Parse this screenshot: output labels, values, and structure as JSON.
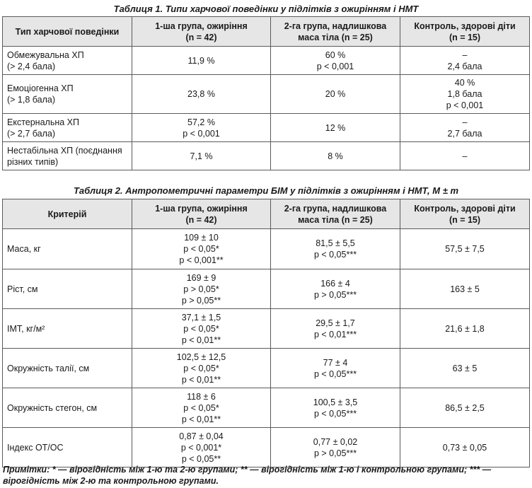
{
  "table1": {
    "caption": "Таблиця 1. Типи харчової поведінки у підлітків з ожирінням і НМТ",
    "headers": [
      [
        "Тип харчової поведінки"
      ],
      [
        "1-ша група, ожиріння",
        "(n = 42)"
      ],
      [
        "2-га група, надлишкова",
        "маса тіла (n = 25)"
      ],
      [
        "Контроль, здорові діти",
        "(n = 15)"
      ]
    ],
    "rows": [
      [
        [
          "Обмежувальна ХП",
          "(> 2,4 бала)"
        ],
        [
          "11,9 %"
        ],
        [
          "60 %",
          "p < 0,001"
        ],
        [
          "–",
          "2,4 бала"
        ]
      ],
      [
        [
          "Емоціогенна ХП",
          "(> 1,8 бала)"
        ],
        [
          "23,8 %"
        ],
        [
          "20 %"
        ],
        [
          "40 %",
          "1,8 бала",
          "p < 0,001"
        ]
      ],
      [
        [
          "Екстернальна ХП",
          "(> 2,7 бала)"
        ],
        [
          "57,2 %",
          "p < 0,001"
        ],
        [
          "12 %"
        ],
        [
          "–",
          "2,7 бала"
        ]
      ],
      [
        [
          "Нестабільна ХП (поєднання",
          "різних типів)"
        ],
        [
          "7,1 %"
        ],
        [
          "8 %"
        ],
        [
          "–"
        ]
      ]
    ]
  },
  "table2": {
    "caption": "Таблиця 2. Антропометричні параметри БІМ у підлітків з ожирінням і НМТ, M ± m",
    "headers": [
      [
        "Критерій"
      ],
      [
        "1-ша група, ожиріння",
        "(n = 42)"
      ],
      [
        "2-га група, надлишкова",
        "маса тіла (n = 25)"
      ],
      [
        "Контроль, здорові діти",
        "(n = 15)"
      ]
    ],
    "rows": [
      [
        [
          "Маса, кг"
        ],
        [
          "109 ± 10",
          "p < 0,05*",
          "p < 0,001**"
        ],
        [
          "81,5 ± 5,5",
          "p < 0,05***"
        ],
        [
          "57,5 ± 7,5"
        ]
      ],
      [
        [
          "Ріст, см"
        ],
        [
          "169 ± 9",
          "p > 0,05*",
          "p > 0,05**"
        ],
        [
          "166 ± 4",
          "p > 0,05***"
        ],
        [
          "163 ± 5"
        ]
      ],
      [
        [
          "ІМТ, кг/м²"
        ],
        [
          "37,1 ± 1,5",
          "p < 0,05*",
          "p < 0,01**"
        ],
        [
          "29,5 ± 1,7",
          "p < 0,01***"
        ],
        [
          "21,6 ± 1,8"
        ]
      ],
      [
        [
          "Окружність талії, см"
        ],
        [
          "102,5 ± 12,5",
          "p < 0,05*",
          "p < 0,01**"
        ],
        [
          "77 ± 4",
          "p < 0,05***"
        ],
        [
          "63 ± 5"
        ]
      ],
      [
        [
          "Окружність стегон, см"
        ],
        [
          "118 ± 6",
          "p < 0,05*",
          "p < 0,01**"
        ],
        [
          "100,5 ± 3,5",
          "p < 0,05***"
        ],
        [
          "86,5 ± 2,5"
        ]
      ],
      [
        [
          "Індекс ОТ/ОС"
        ],
        [
          "0,87 ± 0,04",
          "p < 0,001*",
          "p < 0,05**"
        ],
        [
          "0,77 ± 0,02",
          "p > 0,05***"
        ],
        [
          "0,73 ± 0,05"
        ]
      ]
    ]
  },
  "notes": "Примітки: * — вірогідність між 1-ю та 2-ю групами; ** — вірогідність між 1-ю і контрольною групами; *** — вірогідність між 2-ю та контрольною групами."
}
